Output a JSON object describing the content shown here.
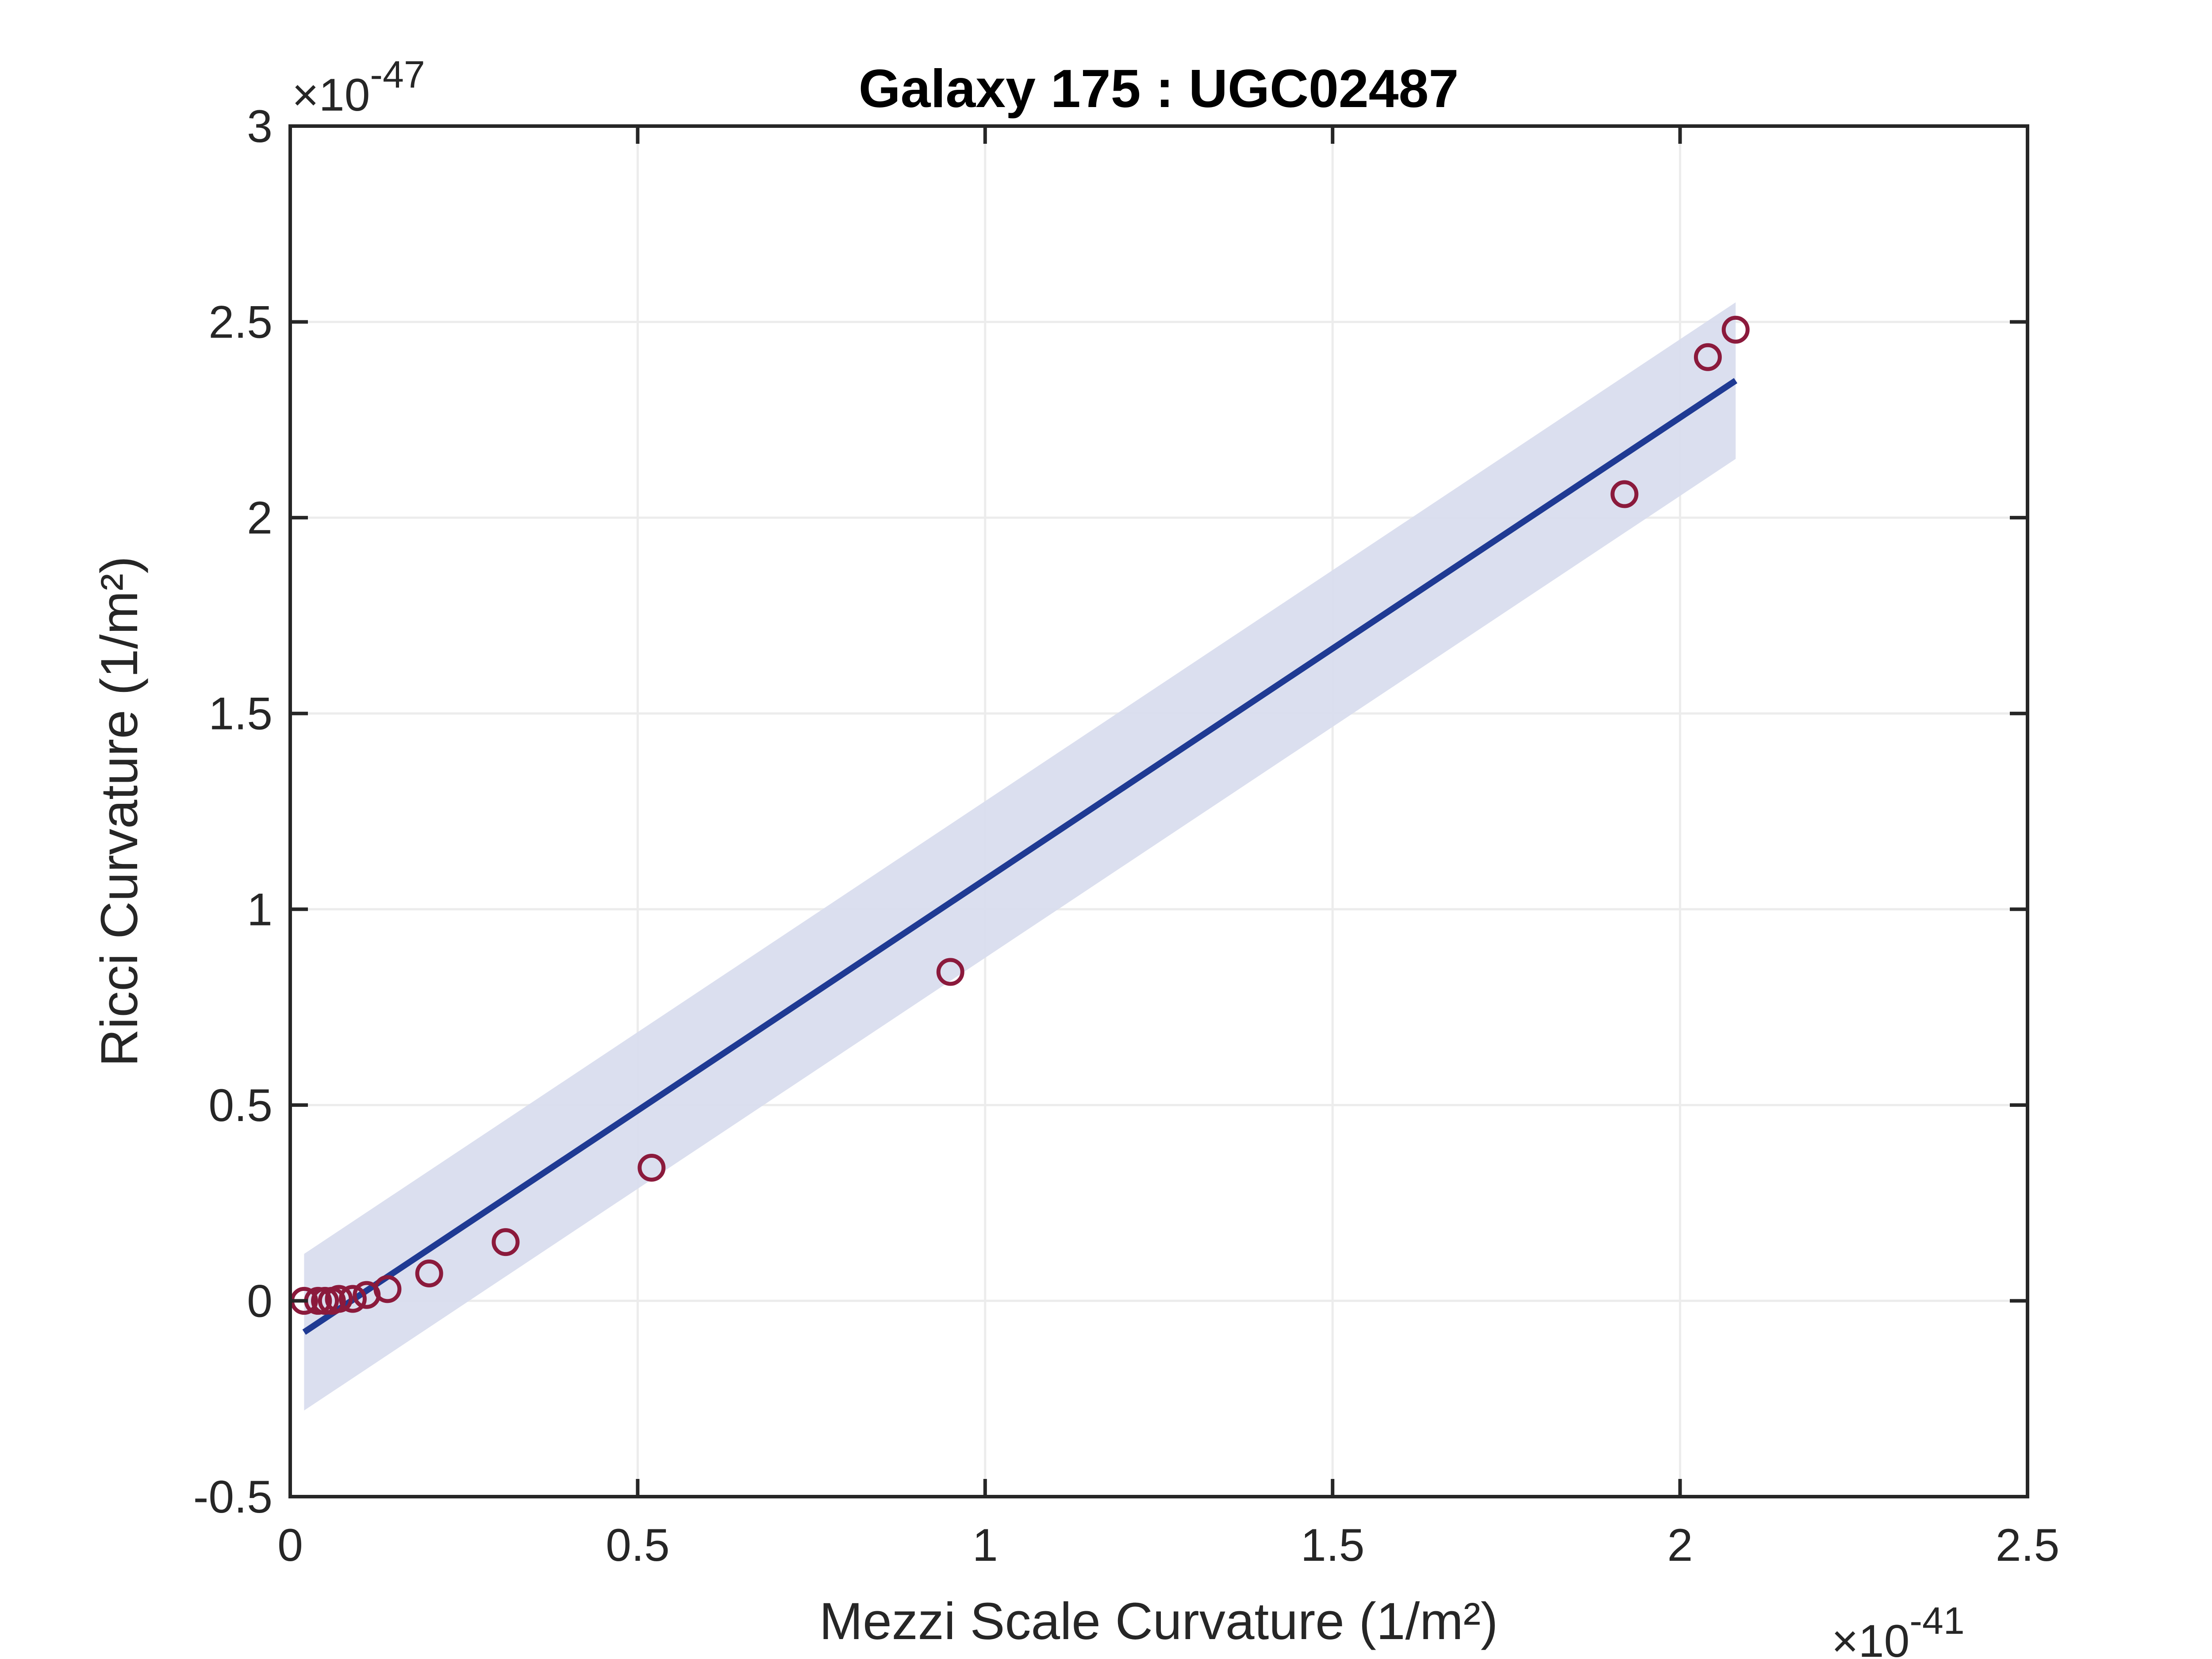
{
  "chart_data": {
    "type": "scatter",
    "title": "Galaxy 175 : UGC02487",
    "xlabel": "Mezzi Scale Curvature (1/m²)",
    "ylabel": "Ricci Curvature (1/m²)",
    "x_multiplier": "×10",
    "x_exponent": "-41",
    "y_multiplier": "×10",
    "y_exponent": "-47",
    "xlim": [
      0,
      2.5
    ],
    "ylim": [
      -0.5,
      3
    ],
    "x_ticks": [
      0,
      0.5,
      1,
      1.5,
      2,
      2.5
    ],
    "x_tick_labels": [
      "0",
      "0.5",
      "1",
      "1.5",
      "2",
      "2.5"
    ],
    "y_ticks": [
      -0.5,
      0,
      0.5,
      1,
      1.5,
      2,
      2.5,
      3
    ],
    "y_tick_labels": [
      "-0.5",
      "0",
      "0.5",
      "1",
      "1.5",
      "2",
      "2.5",
      "3"
    ],
    "grid": true,
    "series": [
      {
        "type": "scatter",
        "color": "#8b1a3c",
        "marker": "open-circle",
        "x": [
          0.02,
          0.04,
          0.05,
          0.06,
          0.07,
          0.09,
          0.11,
          0.14,
          0.2,
          0.31,
          0.52,
          0.95,
          1.92,
          2.04,
          2.08
        ],
        "y": [
          0.0,
          0.0,
          0.0,
          0.0,
          0.005,
          0.005,
          0.015,
          0.03,
          0.07,
          0.15,
          0.34,
          0.84,
          2.06,
          2.41,
          2.48
        ]
      },
      {
        "type": "line",
        "color": "#1f3a93",
        "x": [
          0.02,
          2.08
        ],
        "y": [
          -0.08,
          2.35
        ]
      },
      {
        "type": "area-band",
        "color": "#d9ddee",
        "x": [
          0.02,
          2.08
        ],
        "upper": [
          0.12,
          2.55
        ],
        "lower": [
          -0.28,
          2.15
        ]
      }
    ]
  }
}
